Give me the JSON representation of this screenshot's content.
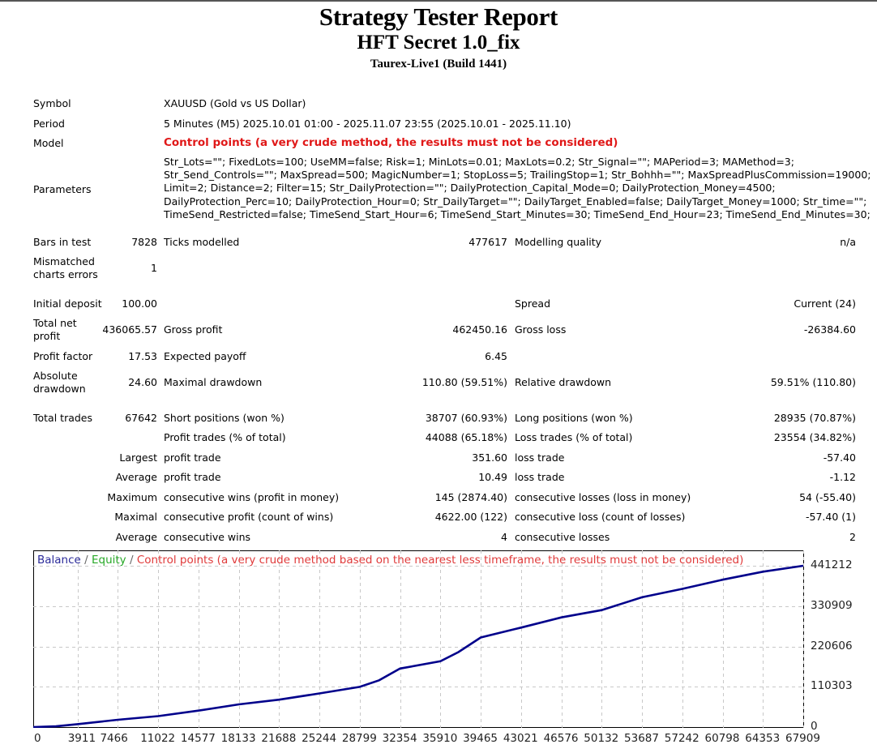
{
  "header": {
    "title": "Strategy Tester Report",
    "expert": "HFT Secret 1.0_fix",
    "server": "Taurex-Live1 (Build 1441)"
  },
  "info": {
    "symbol_label": "Symbol",
    "symbol_value": "XAUUSD (Gold vs US Dollar)",
    "period_label": "Period",
    "period_value": "5 Minutes (M5) 2025.10.01 01:00 - 2025.11.07 23:55 (2025.10.01 - 2025.11.10)",
    "model_label": "Model",
    "model_value": "Control points (a very crude method, the results must not be considered)",
    "parameters_label": "Parameters",
    "parameters_lines": [
      "Str_Lots=\"\"; FixedLots=100; UseMM=false; Risk=1; MinLots=0.01; MaxLots=0.2; Str_Signal=\"\"; MAPeriod=3; MAMethod=3;",
      "Str_Send_Controls=\"\"; MaxSpread=500; MagicNumber=1; StopLoss=5; TrailingStop=1; Str_Bohhh=\"\"; MaxSpreadPlusCommission=19000;",
      "Limit=2; Distance=2; Filter=15; Str_DailyProtection=\"\"; DailyProtection_Capital_Mode=0; DailyProtection_Money=4500;",
      "DailyProtection_Perc=10; DailyProtection_Hour=0; Str_DailyTarget=\"\"; DailyTarget_Enabled=false; DailyTarget_Money=1000; Str_time=\"\";",
      "TimeSend_Restricted=false; TimeSend_Start_Hour=6; TimeSend_Start_Minutes=30; TimeSend_End_Hour=23; TimeSend_End_Minutes=30;"
    ]
  },
  "stats": {
    "bars_label": "Bars in test",
    "bars_value": "7828",
    "ticks_label": "Ticks modelled",
    "ticks_value": "477617",
    "quality_label": "Modelling quality",
    "quality_value": "n/a",
    "mismatch_label_1": "Mismatched",
    "mismatch_label_2": "charts errors",
    "mismatch_value": "1",
    "deposit_label": "Initial deposit",
    "deposit_value": "100.00",
    "spread_label": "Spread",
    "spread_value": "Current (24)",
    "netprofit_label_1": "Total net",
    "netprofit_label_2": "profit",
    "netprofit_value": "436065.57",
    "grossprofit_label": "Gross profit",
    "grossprofit_value": "462450.16",
    "grossloss_label": "Gross loss",
    "grossloss_value": "-26384.60",
    "pf_label": "Profit factor",
    "pf_value": "17.53",
    "payoff_label": "Expected payoff",
    "payoff_value": "6.45",
    "absdd_label_1": "Absolute",
    "absdd_label_2": "drawdown",
    "absdd_value": "24.60",
    "maxdd_label": "Maximal drawdown",
    "maxdd_value": "110.80 (59.51%)",
    "reldd_label": "Relative drawdown",
    "reldd_value": "59.51% (110.80)",
    "trades_label": "Total trades",
    "trades_value": "67642",
    "short_label": "Short positions (won %)",
    "short_value": "38707 (60.93%)",
    "long_label": "Long positions (won %)",
    "long_value": "28935 (70.87%)",
    "profittrades_label": "Profit trades (% of total)",
    "profittrades_value": "44088 (65.18%)",
    "losstrades_label": "Loss trades (% of total)",
    "losstrades_value": "23554 (34.82%)",
    "rows": [
      {
        "prefix": "Largest",
        "left_label": "profit trade",
        "left_value": "351.60",
        "right_label": "loss trade",
        "right_value": "-57.40"
      },
      {
        "prefix": "Average",
        "left_label": "profit trade",
        "left_value": "10.49",
        "right_label": "loss trade",
        "right_value": "-1.12"
      },
      {
        "prefix": "Maximum",
        "left_label": "consecutive wins (profit in money)",
        "left_value": "145 (2874.40)",
        "right_label": "consecutive losses (loss in money)",
        "right_value": "54 (-55.40)"
      },
      {
        "prefix": "Maximal",
        "left_label": "consecutive profit (count of wins)",
        "left_value": "4622.00 (122)",
        "right_label": "consecutive loss (count of losses)",
        "right_value": "-57.40 (1)"
      },
      {
        "prefix": "Average",
        "left_label": "consecutive wins",
        "left_value": "4",
        "right_label": "consecutive losses",
        "right_value": "2"
      }
    ]
  },
  "chart_legend": {
    "balance": "Balance",
    "sep": " / ",
    "equity": "Equity",
    "control": "Control points (a very crude method based on the nearest less timeframe, the results must not be considered)"
  },
  "colors": {
    "balance": "#00008b",
    "equity": "#27a827",
    "warning": "#e01818",
    "grid": "#c8c8c8"
  },
  "chart_data": {
    "type": "line",
    "title": "Balance / Equity",
    "xlabel": "",
    "ylabel": "",
    "x_ticks": [
      "0",
      "3911",
      "7466",
      "11022",
      "14577",
      "18133",
      "21688",
      "25244",
      "28799",
      "32354",
      "35910",
      "39465",
      "43021",
      "46576",
      "50132",
      "53687",
      "57242",
      "60798",
      "64353",
      "67909"
    ],
    "y_ticks": [
      "441212",
      "330909",
      "220606",
      "110303",
      "0"
    ],
    "ylim": [
      0,
      441212
    ],
    "xlim": [
      0,
      67909
    ],
    "grid": true,
    "series": [
      {
        "name": "Balance",
        "x": [
          0,
          2000,
          3911,
          7466,
          11022,
          14577,
          18133,
          21688,
          25244,
          28799,
          30500,
          32354,
          35910,
          37500,
          39465,
          43021,
          46576,
          50132,
          53687,
          57242,
          60798,
          64353,
          67909
        ],
        "values": [
          100,
          2000,
          8000,
          20000,
          30000,
          45000,
          62000,
          75000,
          92000,
          110000,
          128000,
          160000,
          180000,
          205000,
          245000,
          272000,
          300000,
          320000,
          355000,
          378000,
          403000,
          425000,
          441212
        ]
      }
    ]
  }
}
